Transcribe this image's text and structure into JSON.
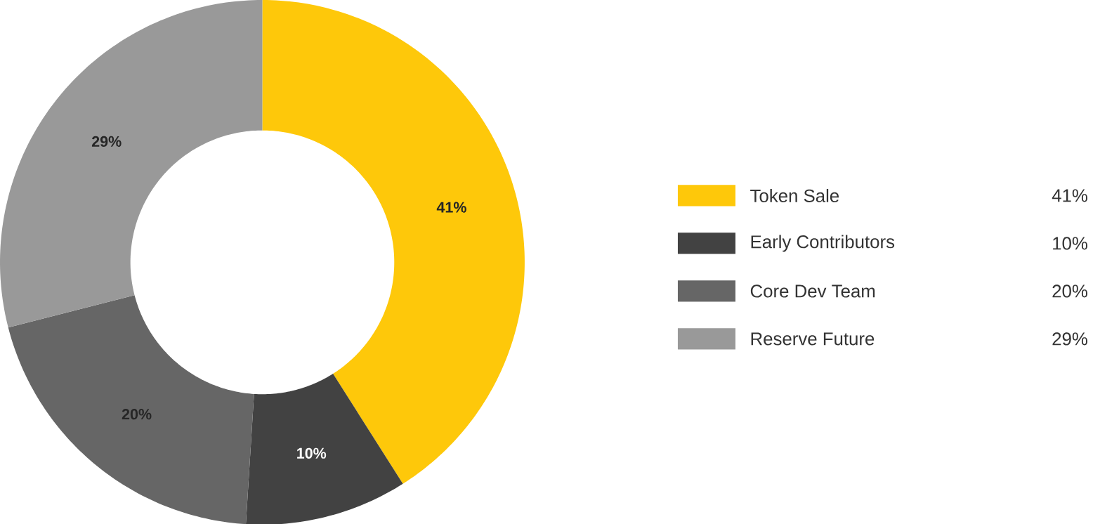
{
  "chart_data": {
    "type": "donut",
    "categories": [
      "Token Sale",
      "Early Contributors",
      "Core Dev Team",
      "Reserve Future"
    ],
    "values": [
      41,
      10,
      20,
      29
    ],
    "value_labels": [
      "41%",
      "10%",
      "20%",
      "29%"
    ],
    "colors": [
      "#fec80a",
      "#424242",
      "#666666",
      "#999999"
    ],
    "legend": "right"
  }
}
